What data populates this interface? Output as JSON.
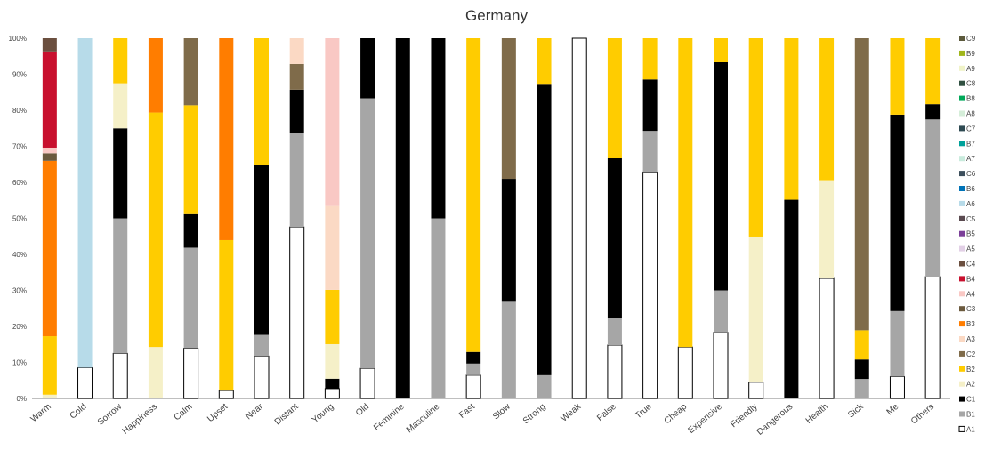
{
  "chart_data": {
    "type": "bar",
    "stacked": true,
    "normalized": true,
    "title": "Germany",
    "xlabel": "",
    "ylabel": "",
    "ylim": [
      0,
      100
    ],
    "y_ticks": [
      "0%",
      "10%",
      "20%",
      "30%",
      "40%",
      "50%",
      "60%",
      "70%",
      "80%",
      "90%",
      "100%"
    ],
    "grid": false,
    "legend_position": "right",
    "categories": [
      "Warm",
      "Cold",
      "Sorrow",
      "Happiness",
      "Calm",
      "Upset",
      "Near",
      "Distant",
      "Young",
      "Old",
      "Feminine",
      "Masculine",
      "Fast",
      "Slow",
      "Strong",
      "Weak",
      "False",
      "True",
      "Cheap",
      "Expensive",
      "Friendly",
      "Dangerous",
      "Health",
      "Sick",
      "Me",
      "Others"
    ],
    "series": [
      {
        "name": "A1",
        "color": "#ffffff",
        "values": [
          0,
          5.5,
          1,
          0,
          3,
          1,
          2,
          10,
          1,
          1,
          0,
          0,
          2,
          0,
          0,
          5.5,
          2,
          11,
          1,
          5.5,
          2,
          0,
          5.5,
          0,
          1,
          12
        ]
      },
      {
        "name": "B1",
        "color": "#a6a6a6",
        "values": [
          0,
          0,
          3,
          0,
          6,
          0,
          1,
          5.5,
          0,
          9,
          0,
          3,
          1,
          5.5,
          2,
          0,
          1,
          2,
          0,
          3.5,
          0,
          0,
          0,
          1,
          3,
          15.5
        ]
      },
      {
        "name": "C1",
        "color": "#000000",
        "values": [
          0,
          0,
          2,
          0,
          2,
          0,
          8,
          2.5,
          1,
          2,
          2,
          3,
          1,
          7,
          25,
          0,
          6,
          2.5,
          0,
          19,
          0,
          8,
          0,
          1,
          9,
          1.5
        ]
      },
      {
        "name": "A2",
        "color": "#f5f0c8",
        "values": [
          1,
          0,
          1,
          9,
          0,
          0,
          0,
          0,
          3.5,
          0,
          0,
          0,
          0,
          0,
          0,
          0,
          0,
          0,
          0,
          0,
          18,
          0,
          4.5,
          0,
          0,
          0
        ]
      },
      {
        "name": "B2",
        "color": "#ffcc00",
        "values": [
          15.5,
          0,
          1,
          41,
          6.5,
          19,
          6,
          0,
          5.5,
          0,
          0,
          0,
          27,
          0,
          4,
          0,
          4.5,
          2,
          6,
          2,
          24.5,
          6.5,
          6.5,
          1.5,
          3.5,
          6.5
        ]
      },
      {
        "name": "C2",
        "color": "#7f6b4a",
        "values": [
          0,
          0,
          0,
          0,
          4,
          0,
          0,
          1.5,
          0,
          0,
          0,
          0,
          0,
          8,
          0,
          0,
          0,
          0,
          0,
          0,
          0,
          0,
          0,
          15,
          0,
          0
        ]
      },
      {
        "name": "A3",
        "color": "#fbd9c4",
        "values": [
          0,
          0,
          0,
          0,
          0,
          0,
          0,
          1.5,
          8.5,
          0,
          0,
          0,
          0,
          0,
          0,
          0,
          0,
          0,
          0,
          0,
          0,
          0,
          0,
          0,
          0,
          0
        ]
      },
      {
        "name": "B3",
        "color": "#ff7d00",
        "values": [
          46.5,
          0,
          0,
          13,
          0,
          25.5,
          0,
          0,
          0,
          0,
          0,
          0,
          0,
          0,
          0,
          0,
          0,
          0,
          0,
          0,
          0,
          0,
          0,
          0,
          0,
          0
        ]
      },
      {
        "name": "C3",
        "color": "#6b5a3e",
        "values": [
          2,
          0,
          0,
          0,
          0,
          0,
          0,
          0,
          0,
          0,
          0,
          0,
          0,
          0,
          0,
          0,
          0,
          0,
          0,
          0,
          0,
          0,
          0,
          0,
          0,
          0
        ]
      },
      {
        "name": "A4",
        "color": "#f9c8c4",
        "values": [
          1.5,
          0,
          0,
          0,
          0,
          0,
          0,
          0,
          17,
          0,
          0,
          0,
          0,
          0,
          0,
          0,
          0,
          0,
          0,
          0,
          0,
          0,
          0,
          0,
          0,
          0
        ]
      },
      {
        "name": "B4",
        "color": "#c8102e",
        "values": [
          25.5,
          0,
          0,
          0,
          0,
          0,
          0,
          0,
          0,
          0,
          0,
          0,
          0,
          0,
          0,
          0,
          0,
          0,
          0,
          0,
          0,
          0,
          0,
          0,
          0,
          0
        ]
      },
      {
        "name": "C4",
        "color": "#6b4f3f",
        "values": [
          3.5,
          0,
          0,
          0,
          0,
          0,
          0,
          0,
          0,
          0,
          0,
          0,
          0,
          0,
          0,
          0,
          0,
          0,
          0,
          0,
          0,
          0,
          0,
          0,
          0,
          0
        ]
      },
      {
        "name": "A5",
        "color": "#e2d0e6",
        "values": [
          0,
          0,
          0,
          0,
          0,
          0,
          0,
          0,
          0,
          0,
          0,
          0,
          0,
          0,
          0,
          0,
          0,
          0,
          0,
          0,
          0,
          0,
          0,
          0,
          0,
          0
        ]
      },
      {
        "name": "B5",
        "color": "#7b3f98",
        "values": [
          0,
          0,
          0,
          0,
          0,
          0,
          0,
          0,
          0,
          0,
          0,
          0,
          0,
          0,
          0,
          0,
          0,
          0,
          0,
          0,
          0,
          0,
          0,
          0,
          0,
          0
        ]
      },
      {
        "name": "C5",
        "color": "#5a4a50",
        "values": [
          0,
          0,
          0,
          0,
          0,
          0,
          0,
          0,
          0,
          0,
          0,
          0,
          0,
          0,
          0,
          0,
          0,
          0,
          0,
          0,
          0,
          0,
          0,
          0,
          0,
          0
        ]
      },
      {
        "name": "A6",
        "color": "#b7dbe9",
        "values": [
          0,
          59,
          0,
          0,
          0,
          0,
          0,
          0,
          0,
          0,
          0,
          0,
          0,
          0,
          0,
          0,
          0,
          0,
          0,
          0,
          0,
          0,
          0,
          0,
          0,
          0
        ]
      },
      {
        "name": "B6",
        "color": "#0073b7",
        "values": [
          0,
          0,
          0,
          0,
          0,
          0,
          0,
          0,
          0,
          0,
          0,
          0,
          0,
          0,
          0,
          0,
          0,
          0,
          0,
          0,
          0,
          0,
          0,
          0,
          0,
          0
        ]
      },
      {
        "name": "C6",
        "color": "#3d4f5c",
        "values": [
          0,
          0,
          0,
          0,
          0,
          0,
          0,
          0,
          0,
          0,
          0,
          0,
          0,
          0,
          0,
          0,
          0,
          0,
          0,
          0,
          0,
          0,
          0,
          0,
          0,
          0
        ]
      },
      {
        "name": "A7",
        "color": "#c9ebdd",
        "values": [
          0,
          0,
          0,
          0,
          0,
          0,
          0,
          0,
          0,
          0,
          0,
          0,
          0,
          0,
          0,
          0,
          0,
          0,
          0,
          0,
          0,
          0,
          0,
          0,
          0,
          0
        ]
      },
      {
        "name": "B7",
        "color": "#00a19a",
        "values": [
          0,
          0,
          0,
          0,
          0,
          0,
          0,
          0,
          0,
          0,
          0,
          0,
          0,
          0,
          0,
          0,
          0,
          0,
          0,
          0,
          0,
          0,
          0,
          0,
          0,
          0
        ]
      },
      {
        "name": "C7",
        "color": "#2e4a52",
        "values": [
          0,
          0,
          0,
          0,
          0,
          0,
          0,
          0,
          0,
          0,
          0,
          0,
          0,
          0,
          0,
          0,
          0,
          0,
          0,
          0,
          0,
          0,
          0,
          0,
          0,
          0
        ]
      },
      {
        "name": "A8",
        "color": "#d5eed9",
        "values": [
          0,
          0,
          0,
          0,
          0,
          0,
          0,
          0,
          0,
          0,
          0,
          0,
          0,
          0,
          0,
          0,
          0,
          0,
          0,
          0,
          0,
          0,
          0,
          0,
          0,
          0
        ]
      },
      {
        "name": "B8",
        "color": "#00a859",
        "values": [
          0,
          0,
          0,
          0,
          0,
          0,
          0,
          0,
          0,
          0,
          0,
          0,
          0,
          0,
          0,
          0,
          0,
          0,
          0,
          0,
          0,
          0,
          0,
          0,
          0,
          0
        ]
      },
      {
        "name": "C8",
        "color": "#2f4f40",
        "values": [
          0,
          0,
          0,
          0,
          0,
          0,
          0,
          0,
          0,
          0,
          0,
          0,
          0,
          0,
          0,
          0,
          0,
          0,
          0,
          0,
          0,
          0,
          0,
          0,
          0,
          0
        ]
      },
      {
        "name": "A9",
        "color": "#f0f3c8",
        "values": [
          0,
          0,
          0,
          0,
          0,
          0,
          0,
          0,
          0,
          0,
          0,
          0,
          0,
          0,
          0,
          0,
          0,
          0,
          0,
          0,
          0,
          0,
          0,
          0,
          0,
          0
        ]
      },
      {
        "name": "B9",
        "color": "#a0b61a",
        "values": [
          0,
          0,
          0,
          0,
          0,
          0,
          0,
          0,
          0,
          0,
          0,
          0,
          0,
          0,
          0,
          0,
          0,
          0,
          0,
          0,
          0,
          0,
          0,
          0,
          0,
          0
        ]
      },
      {
        "name": "C9",
        "color": "#5c5a3c",
        "values": [
          0,
          0,
          0,
          0,
          0,
          0,
          0,
          0,
          0,
          0,
          0,
          0,
          0,
          0,
          0,
          0,
          0,
          0,
          0,
          0,
          0,
          0,
          0,
          0,
          0,
          0
        ]
      }
    ]
  }
}
